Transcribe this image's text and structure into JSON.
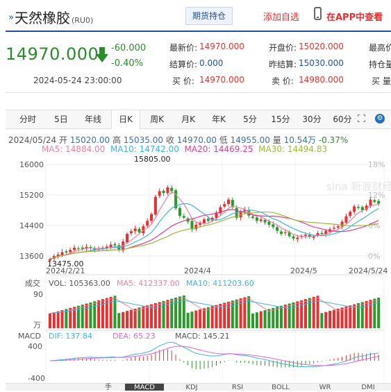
{
  "header": {
    "title": "天然橡胶",
    "code": "(RU0)",
    "hold_button": "期货持仓",
    "add_fav": "添加自选",
    "app_link": "在APP中查看"
  },
  "quote": {
    "price": "14970.000",
    "change": "-60.000",
    "change_pct": "-0.40%",
    "datetime": "2024-05-24 23:00:00",
    "grid": [
      {
        "label": "最新价:",
        "value": "14970.000"
      },
      {
        "label": "开盘价:",
        "value": "15020.000"
      },
      {
        "label": "最高价",
        "value": ""
      },
      {
        "label": "结算价:",
        "value": "0.000"
      },
      {
        "label": "昨结算:",
        "value": "15030.000"
      },
      {
        "label": "持仓量",
        "value": ""
      },
      {
        "label": "买  价:",
        "value": "14970.000"
      },
      {
        "label": "卖  价:",
        "value": "14980.000"
      },
      {
        "label": "买 量",
        "value": ""
      }
    ]
  },
  "tabs": [
    "分时",
    "5日",
    "年线",
    "日K",
    "周K",
    "月K",
    "年K",
    "5分",
    "15分",
    "30分",
    "60分"
  ],
  "active_tab": "日K",
  "colors": {
    "up": "#e7302f",
    "down": "#2a9a2a",
    "accent": "#1f4e9c",
    "ma5": "#f07ea0",
    "ma10": "#3cb6dc",
    "ma20": "#e63a8c",
    "ma30": "#9bb83c",
    "macd_dif": "#3cb6dc",
    "macd_dea": "#e060e0"
  },
  "info": {
    "date": "2024/05/24",
    "open_label": "开",
    "open": "15020.00",
    "high_label": "高",
    "high": "15035.00",
    "close_label": "收",
    "close": "14970.00",
    "low_label": "低",
    "low": "14955.00",
    "vol_label": "量",
    "vol": "10.54万",
    "pct": "-0.37%"
  },
  "ma": {
    "ma5": "MA5: 14884.00",
    "ma10": "MA10: 14742.00",
    "ma20": "MA20: 14469.25",
    "ma30": "MA30: 14494.83"
  },
  "chart_data": {
    "type": "candlestick",
    "price_axis": {
      "ticks": [
        "16000",
        "15200",
        "14400",
        "13600"
      ],
      "tick_values": [
        16000,
        15200,
        14400,
        13600
      ],
      "right_ticks": [
        "18%",
        "12%",
        "6%",
        "0%"
      ],
      "ylim": [
        13400,
        16200
      ]
    },
    "x_labels": [
      "2024/2/21",
      "2024/4",
      "2024/5",
      "2024/5/24"
    ],
    "annotations": {
      "max": "15805.00",
      "min": "13475.00"
    },
    "watermark": "sina 新浪财经",
    "volume": {
      "label": "成交",
      "vol_text": "VOL: 105363.00",
      "ma5_text": "MA5: 412337.00",
      "ma10_text": "MA10: 411203.60",
      "top_tick": "90",
      "unit_tick": "万"
    },
    "macd": {
      "label": "MACD",
      "dif_text": "DIF: 137.84",
      "dea_text": "DEA: 65.23",
      "macd_text": "MACD: 145.21",
      "top_tick": "400",
      "bottom_tick": "-400"
    },
    "closes": [
      13520,
      13600,
      13640,
      13700,
      13690,
      13760,
      13820,
      13800,
      13790,
      13840,
      13810,
      13760,
      13780,
      13820,
      13850,
      13900,
      13880,
      13760,
      13980,
      14180,
      14250,
      14320,
      14220,
      14380,
      14520,
      14700,
      15150,
      15300,
      15250,
      15400,
      15300,
      14850,
      14650,
      14600,
      14500,
      14300,
      14420,
      14480,
      14560,
      14520,
      14600,
      14740,
      14880,
      14960,
      15080,
      14880,
      14600,
      14760,
      14820,
      14660,
      14600,
      14520,
      14560,
      14480,
      14420,
      14360,
      14260,
      14180,
      14220,
      14120,
      14060,
      14080,
      14120,
      14160,
      14100,
      14120,
      14200,
      14180,
      14260,
      14300,
      14340,
      14380,
      14500,
      14640,
      14760,
      14900,
      14860,
      14800,
      14920,
      15080,
      15020,
      14970
    ]
  },
  "bottom_tabs": [
    "手",
    "MACD",
    "KDJ",
    "RSI",
    "BOLL",
    "WR",
    "DMI"
  ]
}
